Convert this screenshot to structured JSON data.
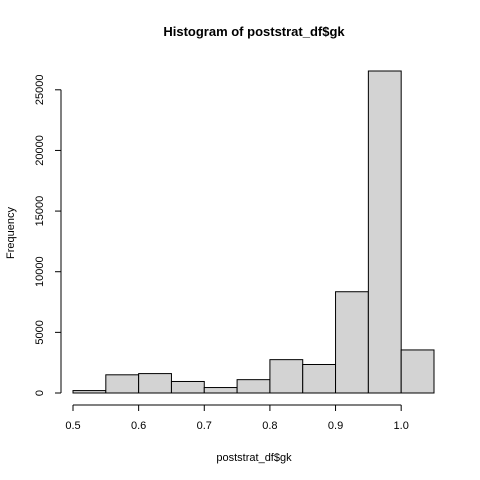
{
  "chart_data": {
    "type": "bar",
    "title": "Histogram of poststrat_df$gk",
    "xlabel": "poststrat_df$gk",
    "ylabel": "Frequency",
    "bins": [
      {
        "x0": 0.5,
        "x1": 0.55,
        "value": 200
      },
      {
        "x0": 0.55,
        "x1": 0.6,
        "value": 1500
      },
      {
        "x0": 0.6,
        "x1": 0.65,
        "value": 1600
      },
      {
        "x0": 0.65,
        "x1": 0.7,
        "value": 950
      },
      {
        "x0": 0.7,
        "x1": 0.75,
        "value": 450
      },
      {
        "x0": 0.75,
        "x1": 0.8,
        "value": 1100
      },
      {
        "x0": 0.8,
        "x1": 0.85,
        "value": 2750
      },
      {
        "x0": 0.85,
        "x1": 0.9,
        "value": 2350
      },
      {
        "x0": 0.9,
        "x1": 0.95,
        "value": 8350
      },
      {
        "x0": 0.95,
        "x1": 1.0,
        "value": 26550
      },
      {
        "x0": 1.0,
        "x1": 1.05,
        "value": 3550
      }
    ],
    "xlim": [
      0.5,
      1.05
    ],
    "ylim": [
      0,
      26550
    ],
    "xticks": [
      0.5,
      0.6,
      0.7,
      0.8,
      0.9,
      1.0
    ],
    "xtick_labels": [
      "0.5",
      "0.6",
      "0.7",
      "0.8",
      "0.9",
      "1.0"
    ],
    "yticks": [
      0,
      5000,
      10000,
      15000,
      20000,
      25000
    ],
    "ytick_labels": [
      "0",
      "5000",
      "10000",
      "15000",
      "20000",
      "25000"
    ],
    "bar_color": "#d3d3d3",
    "grid": false,
    "legend": "none"
  }
}
